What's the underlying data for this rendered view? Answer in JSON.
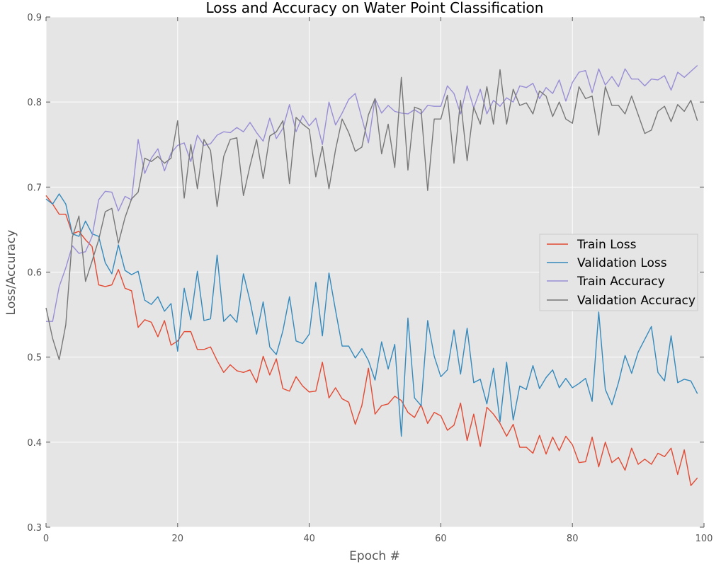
{
  "chart_data": {
    "type": "line",
    "title": "Loss and Accuracy on Water Point Classification",
    "xlabel": "Epoch #",
    "ylabel": "Loss/Accuracy",
    "xlim": [
      0,
      100
    ],
    "ylim": [
      0.3,
      0.9
    ],
    "xticks": [
      0,
      20,
      40,
      60,
      80,
      100
    ],
    "yticks": [
      0.3,
      0.4,
      0.5,
      0.6,
      0.7,
      0.8,
      0.9
    ],
    "xtick_labels": [
      "0",
      "20",
      "40",
      "60",
      "80",
      "100"
    ],
    "ytick_labels": [
      "0.3",
      "0.4",
      "0.5",
      "0.6",
      "0.7",
      "0.8",
      "0.9"
    ],
    "grid": true,
    "background": "#e5e5e5",
    "legend_position": "center-right",
    "series": [
      {
        "name": "Train Loss",
        "color": "#e24a33",
        "values": [
          0.69,
          0.68,
          0.668,
          0.668,
          0.645,
          0.648,
          0.638,
          0.63,
          0.585,
          0.583,
          0.585,
          0.603,
          0.581,
          0.578,
          0.535,
          0.544,
          0.541,
          0.524,
          0.543,
          0.514,
          0.519,
          0.53,
          0.53,
          0.509,
          0.509,
          0.512,
          0.496,
          0.482,
          0.491,
          0.484,
          0.482,
          0.485,
          0.47,
          0.501,
          0.479,
          0.498,
          0.463,
          0.46,
          0.477,
          0.466,
          0.459,
          0.46,
          0.494,
          0.452,
          0.464,
          0.451,
          0.447,
          0.421,
          0.443,
          0.487,
          0.433,
          0.443,
          0.445,
          0.454,
          0.449,
          0.435,
          0.429,
          0.444,
          0.422,
          0.435,
          0.431,
          0.414,
          0.42,
          0.446,
          0.402,
          0.433,
          0.395,
          0.441,
          0.433,
          0.422,
          0.407,
          0.421,
          0.394,
          0.394,
          0.387,
          0.408,
          0.386,
          0.406,
          0.39,
          0.407,
          0.397,
          0.376,
          0.377,
          0.406,
          0.371,
          0.4,
          0.376,
          0.382,
          0.367,
          0.393,
          0.374,
          0.38,
          0.374,
          0.387,
          0.383,
          0.393,
          0.362,
          0.391,
          0.349,
          0.358
        ]
      },
      {
        "name": "Validation Loss",
        "color": "#348abd",
        "values": [
          0.686,
          0.68,
          0.692,
          0.68,
          0.645,
          0.642,
          0.66,
          0.645,
          0.642,
          0.611,
          0.598,
          0.632,
          0.602,
          0.597,
          0.601,
          0.567,
          0.562,
          0.571,
          0.554,
          0.563,
          0.507,
          0.581,
          0.544,
          0.601,
          0.543,
          0.545,
          0.62,
          0.542,
          0.55,
          0.541,
          0.598,
          0.566,
          0.527,
          0.565,
          0.512,
          0.503,
          0.531,
          0.571,
          0.519,
          0.516,
          0.527,
          0.588,
          0.525,
          0.599,
          0.555,
          0.513,
          0.513,
          0.499,
          0.51,
          0.496,
          0.473,
          0.518,
          0.486,
          0.515,
          0.407,
          0.546,
          0.452,
          0.443,
          0.543,
          0.501,
          0.477,
          0.485,
          0.532,
          0.48,
          0.534,
          0.47,
          0.474,
          0.445,
          0.487,
          0.424,
          0.494,
          0.426,
          0.466,
          0.462,
          0.49,
          0.463,
          0.476,
          0.485,
          0.464,
          0.475,
          0.464,
          0.469,
          0.475,
          0.448,
          0.553,
          0.462,
          0.444,
          0.47,
          0.502,
          0.481,
          0.506,
          0.521,
          0.536,
          0.482,
          0.472,
          0.525,
          0.47,
          0.474,
          0.472,
          0.457
        ]
      },
      {
        "name": "Train Accuracy",
        "color": "#988ed5",
        "values": [
          0.542,
          0.542,
          0.583,
          0.605,
          0.631,
          0.622,
          0.624,
          0.642,
          0.685,
          0.695,
          0.694,
          0.672,
          0.689,
          0.685,
          0.756,
          0.716,
          0.734,
          0.745,
          0.719,
          0.74,
          0.749,
          0.752,
          0.73,
          0.761,
          0.749,
          0.751,
          0.761,
          0.765,
          0.764,
          0.77,
          0.765,
          0.776,
          0.764,
          0.754,
          0.781,
          0.757,
          0.769,
          0.797,
          0.765,
          0.784,
          0.772,
          0.781,
          0.75,
          0.8,
          0.773,
          0.787,
          0.803,
          0.81,
          0.781,
          0.752,
          0.804,
          0.787,
          0.796,
          0.789,
          0.787,
          0.786,
          0.791,
          0.786,
          0.796,
          0.795,
          0.795,
          0.819,
          0.81,
          0.786,
          0.819,
          0.793,
          0.815,
          0.786,
          0.802,
          0.795,
          0.805,
          0.8,
          0.819,
          0.817,
          0.822,
          0.804,
          0.817,
          0.81,
          0.826,
          0.801,
          0.823,
          0.835,
          0.837,
          0.811,
          0.839,
          0.82,
          0.83,
          0.818,
          0.839,
          0.827,
          0.827,
          0.819,
          0.827,
          0.826,
          0.831,
          0.814,
          0.835,
          0.829,
          0.836,
          0.843
        ]
      },
      {
        "name": "Validation Accuracy",
        "color": "#777777",
        "values": [
          0.558,
          0.522,
          0.497,
          0.538,
          0.641,
          0.666,
          0.589,
          0.613,
          0.638,
          0.671,
          0.675,
          0.634,
          0.664,
          0.686,
          0.694,
          0.734,
          0.73,
          0.736,
          0.728,
          0.734,
          0.778,
          0.687,
          0.75,
          0.698,
          0.756,
          0.743,
          0.677,
          0.736,
          0.756,
          0.758,
          0.69,
          0.725,
          0.756,
          0.71,
          0.76,
          0.765,
          0.778,
          0.704,
          0.782,
          0.774,
          0.768,
          0.712,
          0.748,
          0.698,
          0.744,
          0.78,
          0.764,
          0.742,
          0.747,
          0.785,
          0.804,
          0.739,
          0.774,
          0.723,
          0.829,
          0.72,
          0.794,
          0.791,
          0.696,
          0.78,
          0.78,
          0.808,
          0.728,
          0.802,
          0.731,
          0.794,
          0.774,
          0.818,
          0.774,
          0.838,
          0.774,
          0.815,
          0.796,
          0.799,
          0.786,
          0.813,
          0.807,
          0.783,
          0.8,
          0.78,
          0.775,
          0.818,
          0.804,
          0.807,
          0.761,
          0.818,
          0.796,
          0.796,
          0.786,
          0.807,
          0.785,
          0.763,
          0.767,
          0.789,
          0.795,
          0.777,
          0.797,
          0.789,
          0.802,
          0.778
        ]
      }
    ]
  }
}
